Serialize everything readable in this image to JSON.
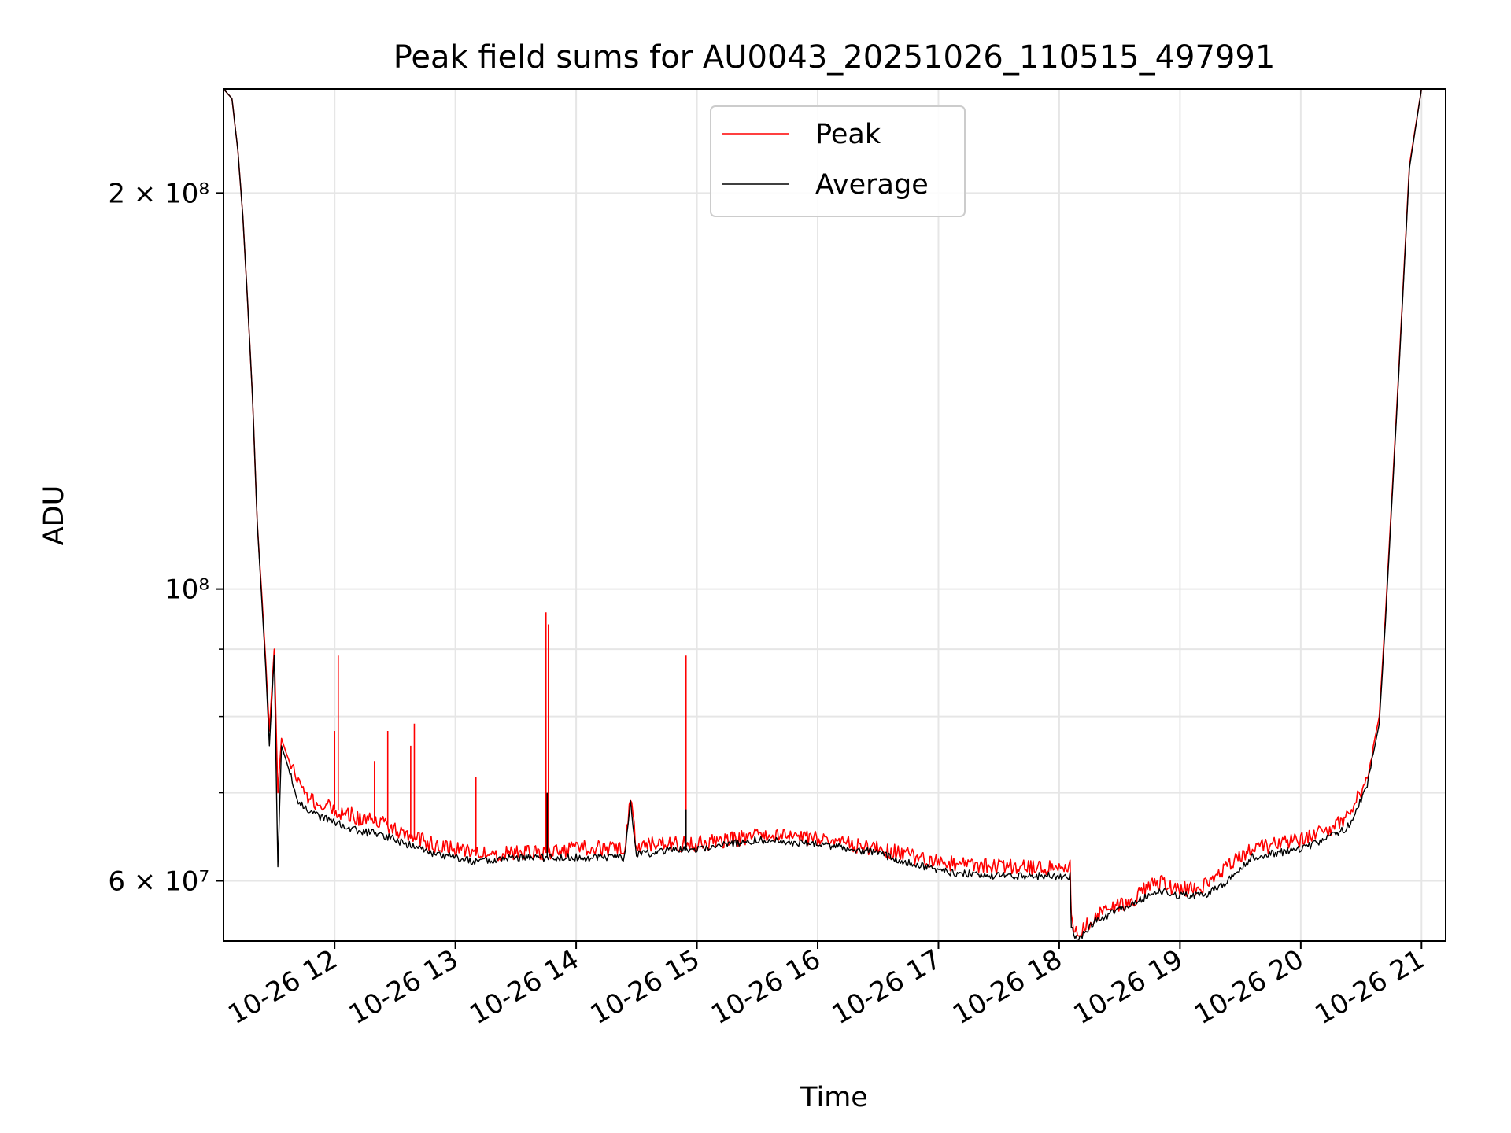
{
  "chart_data": {
    "type": "line",
    "title": "Peak field sums for AU0043_20251026_110515_497991",
    "xlabel": "Time",
    "ylabel": "ADU",
    "yscale": "log",
    "xlim": [
      11.08,
      21.2
    ],
    "ylim": [
      54000000,
      240000000
    ],
    "grid": true,
    "legend_position": "upper-center",
    "x_ticks": [
      {
        "value": 12,
        "label": "10-26 12"
      },
      {
        "value": 13,
        "label": "10-26 13"
      },
      {
        "value": 14,
        "label": "10-26 14"
      },
      {
        "value": 15,
        "label": "10-26 15"
      },
      {
        "value": 16,
        "label": "10-26 16"
      },
      {
        "value": 17,
        "label": "10-26 17"
      },
      {
        "value": 18,
        "label": "10-26 18"
      },
      {
        "value": 19,
        "label": "10-26 19"
      },
      {
        "value": 20,
        "label": "10-26 20"
      },
      {
        "value": 21,
        "label": "10-26 21"
      }
    ],
    "y_ticks": [
      {
        "value": 60000000,
        "label": "6 × 10⁷"
      },
      {
        "value": 100000000,
        "label": "10⁸"
      },
      {
        "value": 200000000,
        "label": "2 × 10⁸"
      }
    ],
    "y_minor_ticks": [
      70000000,
      80000000,
      90000000
    ],
    "series": [
      {
        "name": "Peak",
        "color": "#ff0000",
        "x": [
          11.08,
          11.15,
          11.2,
          11.24,
          11.28,
          11.32,
          11.36,
          11.4,
          11.43,
          11.46,
          11.5,
          11.53,
          11.56,
          11.6,
          11.7,
          11.8,
          11.9,
          12.0,
          12.2,
          12.4,
          12.6,
          12.8,
          13.0,
          13.2,
          13.5,
          13.75,
          14.0,
          14.4,
          14.45,
          14.5,
          14.6,
          15.0,
          15.3,
          15.5,
          16.0,
          16.5,
          17.0,
          17.5,
          18.0,
          18.09,
          18.1,
          18.15,
          18.3,
          18.6,
          18.8,
          19.0,
          19.2,
          19.4,
          19.6,
          19.8,
          20.0,
          20.2,
          20.4,
          20.55,
          20.65,
          20.7,
          20.8,
          20.9,
          21.0
        ],
        "y": [
          240000000,
          236000000,
          215000000,
          192000000,
          165000000,
          140000000,
          112000000,
          98000000,
          88000000,
          78000000,
          90000000,
          70000000,
          77000000,
          75000000,
          71000000,
          69000000,
          68500000,
          68000000,
          67000000,
          66500000,
          65000000,
          64000000,
          63500000,
          63000000,
          63000000,
          63000000,
          63500000,
          63500000,
          69500000,
          63500000,
          64000000,
          64000000,
          64500000,
          65000000,
          64500000,
          63500000,
          62000000,
          61500000,
          61500000,
          61500000,
          56000000,
          54500000,
          56500000,
          58000000,
          60000000,
          59000000,
          59500000,
          61500000,
          63500000,
          64000000,
          64500000,
          65500000,
          67000000,
          72000000,
          80000000,
          95000000,
          140000000,
          210000000,
          240000000
        ]
      },
      {
        "name": "Average",
        "color": "#000000",
        "x": [
          11.08,
          11.15,
          11.2,
          11.24,
          11.28,
          11.32,
          11.36,
          11.4,
          11.43,
          11.46,
          11.5,
          11.53,
          11.56,
          11.6,
          11.7,
          11.8,
          11.9,
          12.0,
          12.2,
          12.4,
          12.6,
          12.8,
          13.0,
          13.2,
          13.5,
          13.75,
          14.0,
          14.4,
          14.45,
          14.5,
          14.6,
          15.0,
          15.3,
          15.5,
          16.0,
          16.5,
          17.0,
          17.5,
          18.0,
          18.09,
          18.1,
          18.15,
          18.3,
          18.6,
          18.8,
          19.0,
          19.2,
          19.4,
          19.6,
          19.8,
          20.0,
          20.2,
          20.4,
          20.55,
          20.65,
          20.7,
          20.8,
          20.9,
          21.0
        ],
        "y": [
          240000000,
          236000000,
          215000000,
          192000000,
          165000000,
          140000000,
          112000000,
          97000000,
          87000000,
          76000000,
          89000000,
          61500000,
          76000000,
          74000000,
          69000000,
          67500000,
          67000000,
          66500000,
          65500000,
          65000000,
          64000000,
          63000000,
          62500000,
          62000000,
          62500000,
          62500000,
          62500000,
          62500000,
          69000000,
          63000000,
          63000000,
          63500000,
          64000000,
          64500000,
          64000000,
          63000000,
          61000000,
          60500000,
          60500000,
          60500000,
          55500000,
          54000000,
          56000000,
          57500000,
          59000000,
          58500000,
          58500000,
          60000000,
          62500000,
          63000000,
          63500000,
          64500000,
          66000000,
          71000000,
          79000000,
          94000000,
          139000000,
          209000000,
          240000000
        ]
      }
    ],
    "spikes": [
      {
        "series": "Peak",
        "x": 12.0,
        "y": 78000000
      },
      {
        "series": "Peak",
        "x": 12.03,
        "y": 89000000
      },
      {
        "series": "Peak",
        "x": 12.33,
        "y": 74000000
      },
      {
        "series": "Peak",
        "x": 12.44,
        "y": 78000000
      },
      {
        "series": "Peak",
        "x": 12.63,
        "y": 76000000
      },
      {
        "series": "Peak",
        "x": 12.66,
        "y": 79000000
      },
      {
        "series": "Peak",
        "x": 13.17,
        "y": 72000000
      },
      {
        "series": "Peak",
        "x": 13.75,
        "y": 96000000
      },
      {
        "series": "Peak",
        "x": 13.77,
        "y": 94000000
      },
      {
        "series": "Peak",
        "x": 14.91,
        "y": 89000000
      },
      {
        "series": "Average",
        "x": 13.76,
        "y": 70000000
      },
      {
        "series": "Average",
        "x": 14.91,
        "y": 68000000
      }
    ]
  }
}
